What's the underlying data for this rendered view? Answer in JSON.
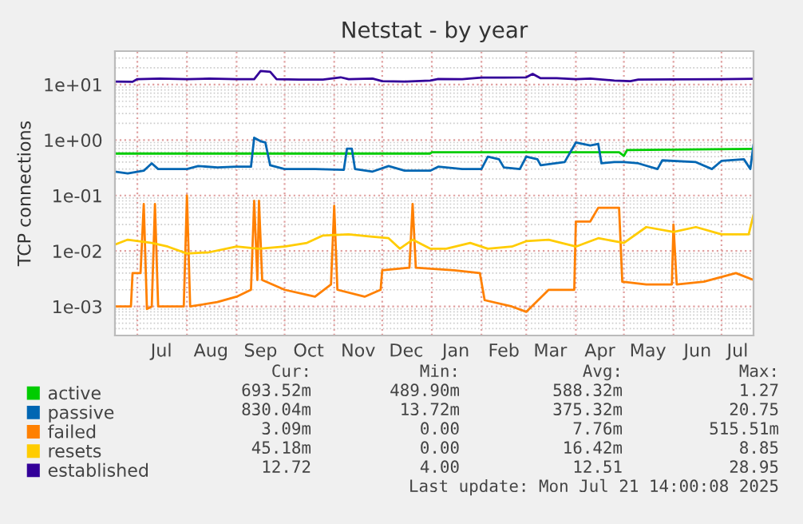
{
  "chart_data": {
    "type": "line",
    "title": "Netstat - by year",
    "ylabel": "TCP connections",
    "log": "y",
    "grid": true,
    "legend": "bottom",
    "line_style": "solid",
    "marker": "none",
    "xlim": [
      "2024-06-17",
      "2025-07-21"
    ],
    "ylim": [
      0.0003,
      40
    ],
    "yticks": [
      {
        "value": 0.001,
        "label": "1e-03"
      },
      {
        "value": 0.01,
        "label": "1e-02"
      },
      {
        "value": 0.1,
        "label": "1e-01"
      },
      {
        "value": 1,
        "label": "1e+00"
      },
      {
        "value": 10,
        "label": "1e+01"
      }
    ],
    "xticks": [
      {
        "value": "2024-07-01",
        "label": null
      },
      {
        "value": "2024-08-01",
        "label": null
      },
      {
        "value": "2024-09-01",
        "label": null
      },
      {
        "value": "2024-10-01",
        "label": null
      },
      {
        "value": "2024-11-01",
        "label": null
      },
      {
        "value": "2024-12-01",
        "label": null
      },
      {
        "value": "2025-01-01",
        "label": null
      },
      {
        "value": "2025-02-01",
        "label": null
      },
      {
        "value": "2025-03-01",
        "label": null
      },
      {
        "value": "2025-04-01",
        "label": null
      },
      {
        "value": "2025-05-01",
        "label": null
      },
      {
        "value": "2025-06-01",
        "label": null
      },
      {
        "value": "2025-07-01",
        "label": null
      },
      {
        "value": "2024-07-16",
        "label": "Jul"
      },
      {
        "value": "2024-08-16",
        "label": "Aug"
      },
      {
        "value": "2024-09-16",
        "label": "Sep"
      },
      {
        "value": "2024-10-16",
        "label": "Oct"
      },
      {
        "value": "2024-11-16",
        "label": "Nov"
      },
      {
        "value": "2024-12-16",
        "label": "Dec"
      },
      {
        "value": "2025-01-16",
        "label": "Jan"
      },
      {
        "value": "2025-02-15",
        "label": "Feb"
      },
      {
        "value": "2025-03-16",
        "label": "Mar"
      },
      {
        "value": "2025-04-16",
        "label": "Apr"
      },
      {
        "value": "2025-05-16",
        "label": "May"
      },
      {
        "value": "2025-06-16",
        "label": "Jun"
      },
      {
        "value": "2025-07-11",
        "label": "Jul"
      }
    ],
    "series": [
      {
        "name": "active",
        "color": "#00cc00",
        "x": [
          "2024-06-17",
          "2024-12-31",
          "2025-01-01",
          "2025-04-28",
          "2025-05-01",
          "2025-05-03",
          "2025-07-21"
        ],
        "values": [
          0.57,
          0.57,
          0.6,
          0.6,
          0.52,
          0.66,
          0.69
        ]
      },
      {
        "name": "passive",
        "color": "#0066b3",
        "x": [
          "2024-06-17",
          "2024-06-25",
          "2024-07-05",
          "2024-07-10",
          "2024-07-14",
          "2024-08-01",
          "2024-08-08",
          "2024-08-20",
          "2024-09-01",
          "2024-09-10",
          "2024-09-12",
          "2024-09-16",
          "2024-09-19",
          "2024-09-22",
          "2024-10-01",
          "2024-10-20",
          "2024-11-07",
          "2024-11-09",
          "2024-11-12",
          "2024-11-14",
          "2024-11-25",
          "2024-12-05",
          "2024-12-15",
          "2024-12-31",
          "2025-01-05",
          "2025-01-20",
          "2025-02-01",
          "2025-02-05",
          "2025-02-12",
          "2025-02-15",
          "2025-02-25",
          "2025-03-01",
          "2025-03-08",
          "2025-03-10",
          "2025-03-25",
          "2025-04-01",
          "2025-04-10",
          "2025-04-15",
          "2025-04-17",
          "2025-04-25",
          "2025-05-01",
          "2025-05-10",
          "2025-05-22",
          "2025-05-25",
          "2025-06-15",
          "2025-06-25",
          "2025-07-01",
          "2025-07-15",
          "2025-07-19",
          "2025-07-21"
        ],
        "values": [
          0.27,
          0.25,
          0.28,
          0.38,
          0.3,
          0.3,
          0.34,
          0.32,
          0.33,
          0.33,
          1.1,
          0.95,
          0.9,
          0.35,
          0.3,
          0.3,
          0.29,
          0.7,
          0.7,
          0.3,
          0.27,
          0.34,
          0.28,
          0.28,
          0.33,
          0.3,
          0.3,
          0.5,
          0.45,
          0.32,
          0.3,
          0.5,
          0.45,
          0.35,
          0.4,
          0.9,
          0.8,
          0.85,
          0.38,
          0.4,
          0.4,
          0.38,
          0.3,
          0.43,
          0.4,
          0.3,
          0.42,
          0.45,
          0.3,
          0.83
        ]
      },
      {
        "name": "failed",
        "color": "#ff8000",
        "x": [
          "2024-06-17",
          "2024-06-27",
          "2024-06-28",
          "2024-07-03",
          "2024-07-05",
          "2024-07-07",
          "2024-07-10",
          "2024-07-12",
          "2024-07-14",
          "2024-07-30",
          "2024-08-01",
          "2024-08-03",
          "2024-08-20",
          "2024-09-01",
          "2024-09-10",
          "2024-09-12",
          "2024-09-14",
          "2024-09-15",
          "2024-09-17",
          "2024-10-01",
          "2024-10-20",
          "2024-10-30",
          "2024-11-01",
          "2024-11-03",
          "2024-11-20",
          "2024-11-30",
          "2024-12-01",
          "2024-12-18",
          "2024-12-20",
          "2024-12-22",
          "2025-01-15",
          "2025-01-31",
          "2025-02-03",
          "2025-02-20",
          "2025-03-01",
          "2025-03-15",
          "2025-03-31",
          "2025-04-01",
          "2025-04-10",
          "2025-04-15",
          "2025-04-28",
          "2025-04-30",
          "2025-05-15",
          "2025-05-31",
          "2025-06-01",
          "2025-06-03",
          "2025-06-20",
          "2025-07-10",
          "2025-07-21"
        ],
        "values": [
          0.001,
          0.001,
          0.004,
          0.004,
          0.07,
          0.0009,
          0.001,
          0.07,
          0.001,
          0.001,
          0.1,
          0.001,
          0.0012,
          0.0015,
          0.002,
          0.08,
          0.003,
          0.08,
          0.003,
          0.002,
          0.0015,
          0.0025,
          0.065,
          0.002,
          0.0015,
          0.002,
          0.0045,
          0.005,
          0.07,
          0.005,
          0.0045,
          0.004,
          0.0013,
          0.001,
          0.0008,
          0.002,
          0.002,
          0.034,
          0.034,
          0.06,
          0.06,
          0.0028,
          0.0025,
          0.0025,
          0.03,
          0.0025,
          0.0028,
          0.004,
          0.003
        ]
      },
      {
        "name": "resets",
        "color": "#ffcc00",
        "x": [
          "2024-06-17",
          "2024-06-25",
          "2024-07-10",
          "2024-07-20",
          "2024-08-01",
          "2024-08-15",
          "2024-09-01",
          "2024-09-15",
          "2024-10-01",
          "2024-10-15",
          "2024-10-25",
          "2024-11-10",
          "2024-11-25",
          "2024-12-05",
          "2024-12-12",
          "2024-12-20",
          "2024-12-31",
          "2025-01-10",
          "2025-01-25",
          "2025-02-05",
          "2025-02-20",
          "2025-03-01",
          "2025-03-15",
          "2025-04-01",
          "2025-04-15",
          "2025-05-01",
          "2025-05-15",
          "2025-06-01",
          "2025-06-15",
          "2025-07-01",
          "2025-07-18",
          "2025-07-21"
        ],
        "values": [
          0.013,
          0.016,
          0.014,
          0.012,
          0.009,
          0.0095,
          0.012,
          0.011,
          0.012,
          0.014,
          0.019,
          0.02,
          0.018,
          0.017,
          0.011,
          0.016,
          0.011,
          0.011,
          0.014,
          0.011,
          0.012,
          0.015,
          0.016,
          0.012,
          0.017,
          0.014,
          0.027,
          0.022,
          0.027,
          0.02,
          0.02,
          0.045
        ]
      },
      {
        "name": "established",
        "color": "#330099",
        "x": [
          "2024-06-17",
          "2024-06-28",
          "2024-07-01",
          "2024-07-15",
          "2024-08-01",
          "2024-08-15",
          "2024-09-01",
          "2024-09-12",
          "2024-09-16",
          "2024-09-22",
          "2024-09-26",
          "2024-10-10",
          "2024-10-25",
          "2024-11-05",
          "2024-11-10",
          "2024-11-25",
          "2024-12-01",
          "2024-12-15",
          "2024-12-31",
          "2025-01-05",
          "2025-01-20",
          "2025-02-01",
          "2025-02-15",
          "2025-03-01",
          "2025-03-05",
          "2025-03-10",
          "2025-03-20",
          "2025-04-01",
          "2025-04-10",
          "2025-04-25",
          "2025-05-05",
          "2025-05-10",
          "2025-06-01",
          "2025-07-01",
          "2025-07-21"
        ],
        "values": [
          11.3,
          11.2,
          12.5,
          12.8,
          12.5,
          12.8,
          12.5,
          12.5,
          17.5,
          17,
          12.5,
          12.3,
          12.3,
          13.5,
          12.5,
          12.8,
          11.5,
          11.3,
          11.8,
          12.6,
          12.5,
          13.3,
          13.3,
          13.5,
          15.5,
          13,
          13,
          12.5,
          12.8,
          11.8,
          11.5,
          12.3,
          12.4,
          12.5,
          12.7
        ]
      }
    ],
    "annotations": [
      "Cur:",
      "Min:",
      "Avg:",
      "Max:",
      "693.52m",
      "489.90m",
      "588.32m",
      "1.27",
      "830.04m",
      "13.72m",
      "375.32m",
      "20.75",
      "3.09m",
      "0.00",
      "7.76m",
      "515.51m",
      "45.18m",
      "0.00",
      "16.42m",
      "8.85",
      "12.72",
      "4.00",
      "12.51",
      "28.95",
      "Last update: Mon Jul 21 14:00:08 2025"
    ]
  }
}
